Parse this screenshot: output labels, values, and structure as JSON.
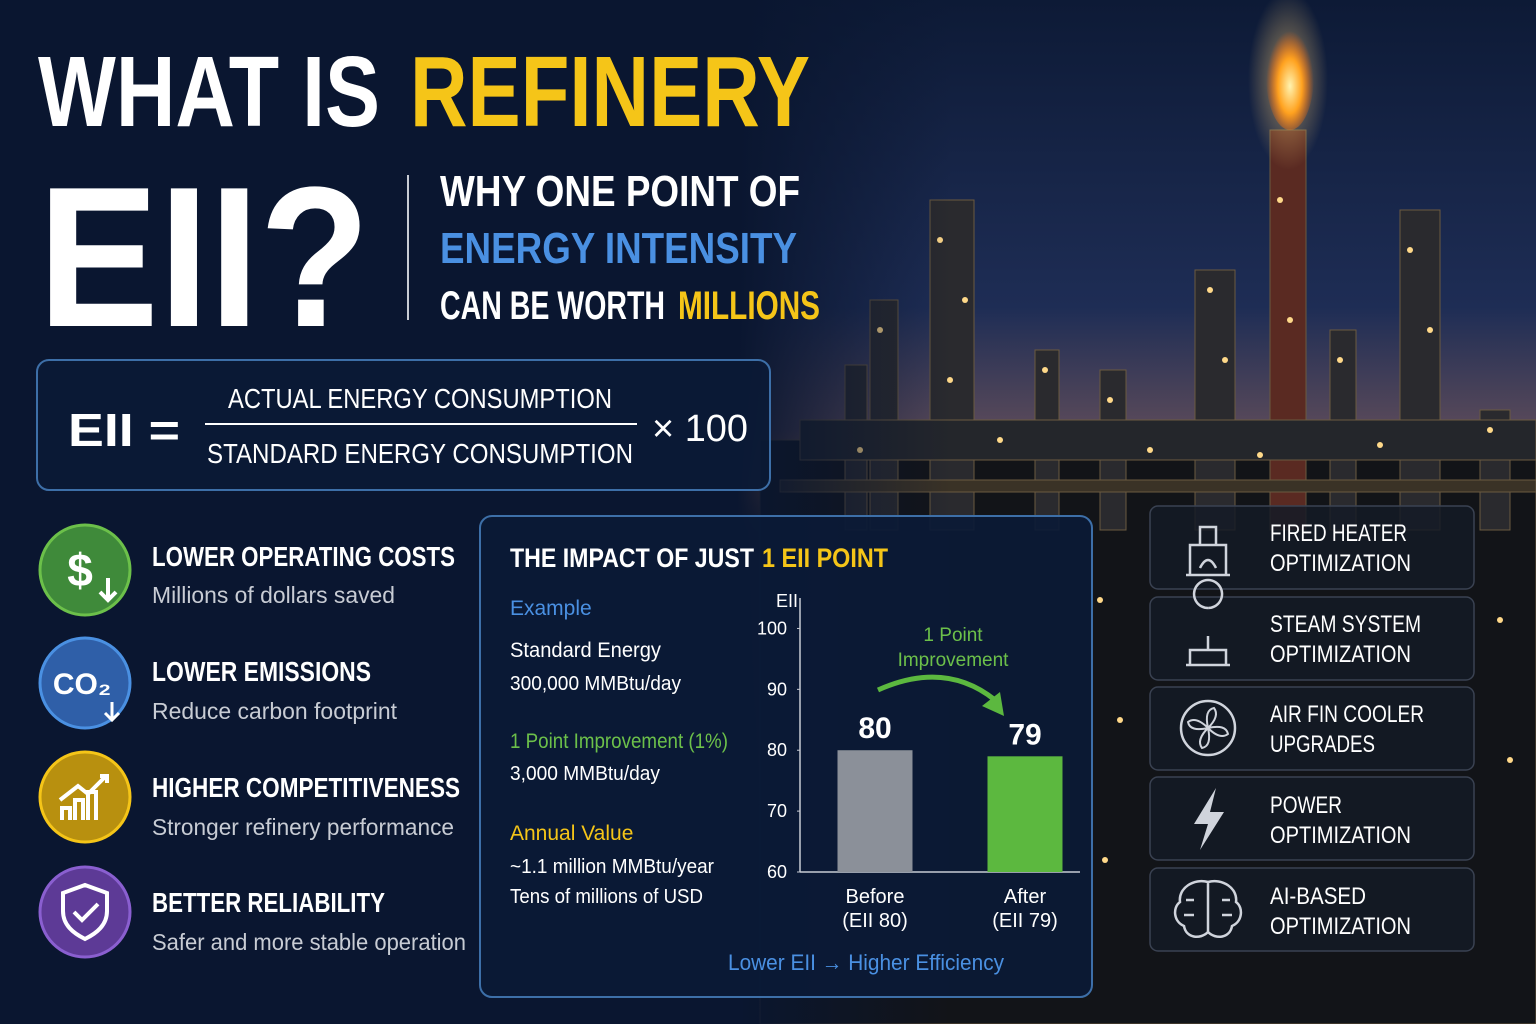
{
  "header": {
    "title_part1": "WHAT IS",
    "title_highlight": "REFINERY",
    "title_line2": "EII?",
    "subtitle_line1": "WHY ONE POINT OF",
    "subtitle_line2": "ENERGY INTENSITY",
    "subtitle_line3": "CAN BE WORTH",
    "subtitle_line3_highlight": "MILLIONS"
  },
  "formula": {
    "lhs": "EII =",
    "numerator": "ACTUAL ENERGY CONSUMPTION",
    "denominator": "STANDARD ENERGY CONSUMPTION",
    "multiplier": "× 100"
  },
  "benefits": [
    {
      "icon_text": "$",
      "title": "LOWER OPERATING COSTS",
      "text": "Millions of dollars saved"
    },
    {
      "icon_text": "CO₂",
      "title": "LOWER EMISSIONS",
      "text": "Reduce carbon footprint"
    },
    {
      "title": "HIGHER COMPETITIVENESS",
      "text": "Stronger refinery performance"
    },
    {
      "title": "BETTER RELIABILITY",
      "text": "Safer and more stable operation"
    }
  ],
  "impact": {
    "title": "THE IMPACT OF JUST",
    "title_highlight": "1 EII POINT",
    "example_heading": "Example",
    "items": [
      {
        "label": "Standard Energy",
        "value": "300,000 MMBtu/day"
      },
      {
        "label": "1 Point Improvement (1%)",
        "value": "3,000 MMBtu/day"
      },
      {
        "label": "Annual Value",
        "value": "~1.1 million MMBtu/year",
        "value_2": "Tens of millions of USD"
      }
    ],
    "footer": "Lower EII → Higher Efficiency"
  },
  "chart_data": {
    "type": "bar",
    "y_label": "EII",
    "categories": [
      "Before",
      "After"
    ],
    "category_sublabels": [
      "(EII 80)",
      "(EII 79)"
    ],
    "values": [
      80,
      79
    ],
    "colors": [
      "#8b9099",
      "#5cb83f"
    ],
    "ylim": [
      60,
      105
    ],
    "yticks": [
      60,
      70,
      80,
      90,
      100
    ],
    "annotation": [
      "1 Point",
      "Improvement"
    ]
  },
  "levers": [
    {
      "line1": "FIRED HEATER",
      "line2": "OPTIMIZATION"
    },
    {
      "line1": "STEAM SYSTEM",
      "line2": "OPTIMIZATION"
    },
    {
      "line1": "AIR FIN COOLER",
      "line2": "UPGRADES"
    },
    {
      "line1": "POWER",
      "line2": "OPTIMIZATION"
    },
    {
      "line1": "AI-BASED",
      "line2": "OPTIMIZATION"
    }
  ]
}
